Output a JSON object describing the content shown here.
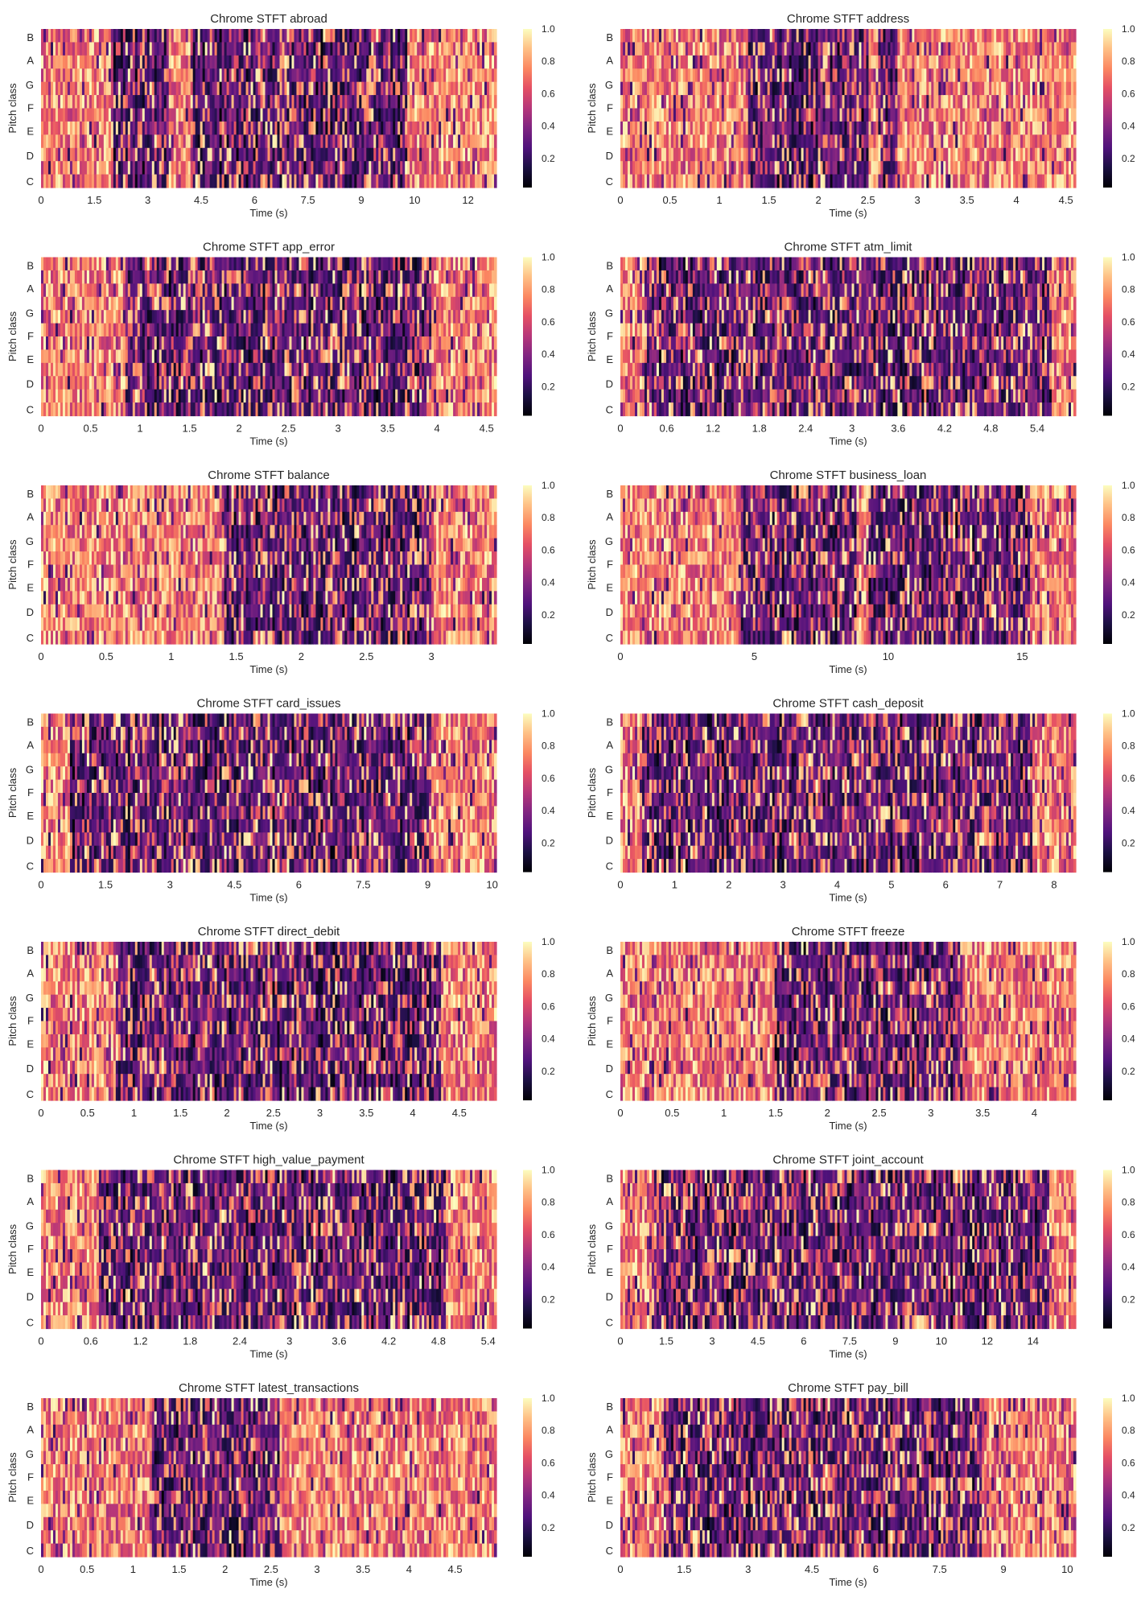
{
  "colormap": "magma",
  "colorbar_ticks": [
    "0.2",
    "0.4",
    "0.6",
    "0.8",
    "1.0"
  ],
  "colorbar_range": [
    0.02,
    1.0
  ],
  "chart_data": [
    {
      "type": "heatmap",
      "title": "Chrome STFT abroad",
      "xlabel": "Time (s)",
      "ylabel": "Pitch class",
      "yticks": [
        "C",
        "D",
        "E",
        "F",
        "G",
        "A",
        "B"
      ],
      "xticks": [
        "0",
        "1.5",
        "3",
        "4.5",
        "6",
        "7.5",
        "9",
        "10",
        "12"
      ],
      "xtick_values": [
        0,
        1.5,
        3,
        4.5,
        6,
        7.5,
        9,
        10.5,
        12
      ],
      "xlim": [
        0,
        12.8
      ],
      "dark_regions": [
        [
          2.0,
          3.6
        ],
        [
          4.3,
          10.3
        ]
      ]
    },
    {
      "type": "heatmap",
      "title": "Chrome STFT address",
      "xlabel": "Time (s)",
      "ylabel": "Pitch class",
      "yticks": [
        "C",
        "D",
        "E",
        "F",
        "G",
        "A",
        "B"
      ],
      "xticks": [
        "0",
        "0.5",
        "1",
        "1.5",
        "2",
        "2.5",
        "3",
        "3.5",
        "4",
        "4.5"
      ],
      "xtick_values": [
        0,
        0.5,
        1,
        1.5,
        2,
        2.5,
        3,
        3.5,
        4,
        4.5
      ],
      "xlim": [
        0,
        4.6
      ],
      "dark_regions": [
        [
          1.3,
          2.5
        ],
        [
          2.6,
          2.8
        ]
      ]
    },
    {
      "type": "heatmap",
      "title": "Chrome STFT app_error",
      "xlabel": "Time (s)",
      "ylabel": "Pitch class",
      "yticks": [
        "C",
        "D",
        "E",
        "F",
        "G",
        "A",
        "B"
      ],
      "xticks": [
        "0",
        "0.5",
        "1",
        "1.5",
        "2",
        "2.5",
        "3",
        "3.5",
        "4",
        "4.5"
      ],
      "xtick_values": [
        0,
        0.5,
        1,
        1.5,
        2,
        2.5,
        3,
        3.5,
        4,
        4.5
      ],
      "xlim": [
        0,
        4.6
      ],
      "dark_regions": [
        [
          0.85,
          3.95
        ]
      ]
    },
    {
      "type": "heatmap",
      "title": "Chrome STFT atm_limit",
      "xlabel": "Time (s)",
      "ylabel": "Pitch class",
      "yticks": [
        "C",
        "D",
        "E",
        "F",
        "G",
        "A",
        "B"
      ],
      "xticks": [
        "0",
        "0.6",
        "1.2",
        "1.8",
        "2.4",
        "3",
        "3.6",
        "4.2",
        "4.8",
        "5.4"
      ],
      "xtick_values": [
        0,
        0.6,
        1.2,
        1.8,
        2.4,
        3,
        3.6,
        4.2,
        4.8,
        5.4
      ],
      "xlim": [
        0,
        5.9
      ],
      "dark_regions": [
        [
          0.3,
          5.6
        ]
      ]
    },
    {
      "type": "heatmap",
      "title": "Chrome STFT balance",
      "xlabel": "Time (s)",
      "ylabel": "Pitch class",
      "yticks": [
        "C",
        "D",
        "E",
        "F",
        "G",
        "A",
        "B"
      ],
      "xticks": [
        "0",
        "0.5",
        "1",
        "1.5",
        "2",
        "2.5",
        "3"
      ],
      "xtick_values": [
        0,
        0.5,
        1,
        1.5,
        2,
        2.5,
        3
      ],
      "xlim": [
        0,
        3.5
      ],
      "dark_regions": [
        [
          1.4,
          3.0
        ]
      ]
    },
    {
      "type": "heatmap",
      "title": "Chrome STFT business_loan",
      "xlabel": "Time (s)",
      "ylabel": "Pitch class",
      "yticks": [
        "C",
        "D",
        "E",
        "F",
        "G",
        "A",
        "B"
      ],
      "xticks": [
        "0",
        "5",
        "10",
        "15"
      ],
      "xtick_values": [
        0,
        5,
        10,
        15
      ],
      "xlim": [
        0,
        17
      ],
      "dark_regions": [
        [
          4.5,
          8.8
        ],
        [
          9.3,
          15.3
        ]
      ]
    },
    {
      "type": "heatmap",
      "title": "Chrome STFT card_issues",
      "xlabel": "Time (s)",
      "ylabel": "Pitch class",
      "yticks": [
        "C",
        "D",
        "E",
        "F",
        "G",
        "A",
        "B"
      ],
      "xticks": [
        "0",
        "1.5",
        "3",
        "4.5",
        "6",
        "7.5",
        "9",
        "10"
      ],
      "xtick_values": [
        0,
        1.5,
        3,
        4.5,
        6,
        7.5,
        9,
        10.5
      ],
      "xlim": [
        0,
        10.6
      ],
      "dark_regions": [
        [
          0.7,
          9.1
        ]
      ]
    },
    {
      "type": "heatmap",
      "title": "Chrome STFT cash_deposit",
      "xlabel": "Time (s)",
      "ylabel": "Pitch class",
      "yticks": [
        "C",
        "D",
        "E",
        "F",
        "G",
        "A",
        "B"
      ],
      "xticks": [
        "0",
        "1",
        "2",
        "3",
        "4",
        "5",
        "6",
        "7",
        "8"
      ],
      "xtick_values": [
        0,
        1,
        2,
        3,
        4,
        5,
        6,
        7,
        8
      ],
      "xlim": [
        0,
        8.4
      ],
      "dark_regions": [
        [
          0.4,
          7.6
        ]
      ]
    },
    {
      "type": "heatmap",
      "title": "Chrome STFT direct_debit",
      "xlabel": "Time (s)",
      "ylabel": "Pitch class",
      "yticks": [
        "C",
        "D",
        "E",
        "F",
        "G",
        "A",
        "B"
      ],
      "xticks": [
        "0",
        "0.5",
        "1",
        "1.5",
        "2",
        "2.5",
        "3",
        "3.5",
        "4",
        "4.5"
      ],
      "xtick_values": [
        0,
        0.5,
        1,
        1.5,
        2,
        2.5,
        3,
        3.5,
        4,
        4.5
      ],
      "xlim": [
        0,
        4.9
      ],
      "dark_regions": [
        [
          0.8,
          4.3
        ]
      ]
    },
    {
      "type": "heatmap",
      "title": "Chrome STFT freeze",
      "xlabel": "Time (s)",
      "ylabel": "Pitch class",
      "yticks": [
        "C",
        "D",
        "E",
        "F",
        "G",
        "A",
        "B"
      ],
      "xticks": [
        "0",
        "0.5",
        "1",
        "1.5",
        "2",
        "2.5",
        "3",
        "3.5",
        "4"
      ],
      "xtick_values": [
        0,
        0.5,
        1,
        1.5,
        2,
        2.5,
        3,
        3.5,
        4
      ],
      "xlim": [
        0,
        4.4
      ],
      "dark_regions": [
        [
          1.5,
          3.3
        ]
      ]
    },
    {
      "type": "heatmap",
      "title": "Chrome STFT high_value_payment",
      "xlabel": "Time (s)",
      "ylabel": "Pitch class",
      "yticks": [
        "C",
        "D",
        "E",
        "F",
        "G",
        "A",
        "B"
      ],
      "xticks": [
        "0",
        "0.6",
        "1.2",
        "1.8",
        "2.4",
        "3",
        "3.6",
        "4.2",
        "4.8",
        "5.4"
      ],
      "xtick_values": [
        0,
        0.6,
        1.2,
        1.8,
        2.4,
        3,
        3.6,
        4.2,
        4.8,
        5.4
      ],
      "xlim": [
        0,
        5.5
      ],
      "dark_regions": [
        [
          0.7,
          4.9
        ]
      ]
    },
    {
      "type": "heatmap",
      "title": "Chrome STFT joint_account",
      "xlabel": "Time (s)",
      "ylabel": "Pitch class",
      "yticks": [
        "C",
        "D",
        "E",
        "F",
        "G",
        "A",
        "B"
      ],
      "xticks": [
        "0",
        "1.5",
        "3",
        "4.5",
        "6",
        "7.5",
        "9",
        "10",
        "12",
        "14"
      ],
      "xtick_values": [
        0,
        1.5,
        3,
        4.5,
        6,
        7.5,
        9,
        10.5,
        12,
        13.5
      ],
      "xlim": [
        0,
        14.9
      ],
      "dark_regions": [
        [
          1.0,
          14.0
        ]
      ]
    },
    {
      "type": "heatmap",
      "title": "Chrome STFT latest_transactions",
      "xlabel": "Time (s)",
      "ylabel": "Pitch class",
      "yticks": [
        "C",
        "D",
        "E",
        "F",
        "G",
        "A",
        "B"
      ],
      "xticks": [
        "0",
        "0.5",
        "1",
        "1.5",
        "2",
        "2.5",
        "3",
        "3.5",
        "4",
        "4.5"
      ],
      "xtick_values": [
        0,
        0.5,
        1,
        1.5,
        2,
        2.5,
        3,
        3.5,
        4,
        4.5
      ],
      "xlim": [
        0,
        4.95
      ],
      "dark_regions": [
        [
          1.2,
          2.6
        ]
      ]
    },
    {
      "type": "heatmap",
      "title": "Chrome STFT pay_bill",
      "xlabel": "Time (s)",
      "ylabel": "Pitch class",
      "yticks": [
        "C",
        "D",
        "E",
        "F",
        "G",
        "A",
        "B"
      ],
      "xticks": [
        "0",
        "1.5",
        "3",
        "4.5",
        "6",
        "7.5",
        "9",
        "10"
      ],
      "xtick_values": [
        0,
        1.5,
        3,
        4.5,
        6,
        7.5,
        9,
        10.5
      ],
      "xlim": [
        0,
        10.7
      ],
      "dark_regions": [
        [
          1.0,
          8.5
        ]
      ]
    }
  ]
}
